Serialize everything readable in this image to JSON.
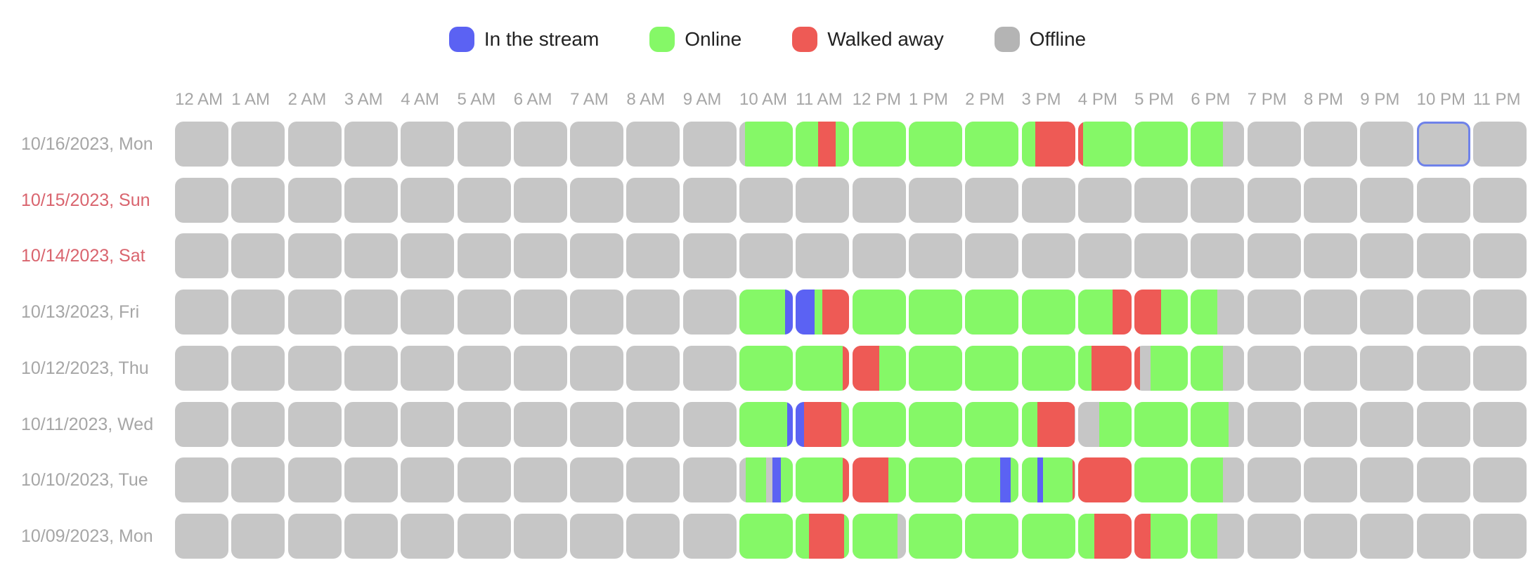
{
  "legend": {
    "items": [
      {
        "label": "In the stream",
        "color": "#5b62f3"
      },
      {
        "label": "Online",
        "color": "#85f867"
      },
      {
        "label": "Walked away",
        "color": "#ee5a55"
      },
      {
        "label": "Offline",
        "color": "#b4b4b4"
      }
    ]
  },
  "colors": {
    "stream": "#5b62f3",
    "online": "#85f867",
    "away": "#ee5a55",
    "offline": "#c6c6c6",
    "weekday_label": "#a6a6a6",
    "weekend_label": "#d9646e",
    "selection_border": "#6f82ea"
  },
  "chart_data": {
    "type": "heatmap",
    "hours": [
      "12 AM",
      "1 AM",
      "2 AM",
      "3 AM",
      "4 AM",
      "5 AM",
      "6 AM",
      "7 AM",
      "8 AM",
      "9 AM",
      "10 AM",
      "11 AM",
      "12 PM",
      "1 PM",
      "2 PM",
      "3 PM",
      "4 PM",
      "5 PM",
      "6 PM",
      "7 PM",
      "8 PM",
      "9 PM",
      "10 PM",
      "11 PM"
    ],
    "days": [
      {
        "label": "10/16/2023, Mon",
        "weekend": false,
        "selected_hour": 22,
        "segments": {
          "10": [
            [
              "offline",
              0,
              0.1
            ],
            [
              "online",
              0.1,
              1
            ]
          ],
          "11": [
            [
              "online",
              0,
              0.42
            ],
            [
              "away",
              0.42,
              0.75
            ],
            [
              "online",
              0.75,
              1
            ]
          ],
          "12": [
            [
              "online",
              0,
              1
            ]
          ],
          "13": [
            [
              "online",
              0,
              1
            ]
          ],
          "14": [
            [
              "online",
              0,
              1
            ]
          ],
          "15": [
            [
              "online",
              0,
              0.25
            ],
            [
              "away",
              0.25,
              1
            ]
          ],
          "16": [
            [
              "away",
              0,
              0.1
            ],
            [
              "online",
              0.1,
              1
            ]
          ],
          "17": [
            [
              "online",
              0,
              1
            ]
          ],
          "18": [
            [
              "online",
              0,
              0.6
            ],
            [
              "offline",
              0.6,
              1
            ]
          ]
        }
      },
      {
        "label": "10/15/2023, Sun",
        "weekend": true,
        "segments": {}
      },
      {
        "label": "10/14/2023, Sat",
        "weekend": true,
        "segments": {}
      },
      {
        "label": "10/13/2023, Fri",
        "weekend": false,
        "segments": {
          "10": [
            [
              "online",
              0,
              0.85
            ],
            [
              "stream",
              0.85,
              1
            ]
          ],
          "11": [
            [
              "stream",
              0,
              0.35
            ],
            [
              "online",
              0.35,
              0.5
            ],
            [
              "away",
              0.5,
              1
            ]
          ],
          "12": [
            [
              "online",
              0,
              1
            ]
          ],
          "13": [
            [
              "online",
              0,
              1
            ]
          ],
          "14": [
            [
              "online",
              0,
              1
            ]
          ],
          "15": [
            [
              "online",
              0,
              1
            ]
          ],
          "16": [
            [
              "online",
              0,
              0.65
            ],
            [
              "away",
              0.65,
              1
            ]
          ],
          "17": [
            [
              "away",
              0,
              0.5
            ],
            [
              "online",
              0.5,
              1
            ]
          ],
          "18": [
            [
              "online",
              0,
              0.5
            ],
            [
              "offline",
              0.5,
              1
            ]
          ]
        }
      },
      {
        "label": "10/12/2023, Thu",
        "weekend": false,
        "segments": {
          "10": [
            [
              "online",
              0,
              1
            ]
          ],
          "11": [
            [
              "online",
              0,
              0.88
            ],
            [
              "away",
              0.88,
              1
            ]
          ],
          "12": [
            [
              "away",
              0,
              0.5
            ],
            [
              "online",
              0.5,
              1
            ]
          ],
          "13": [
            [
              "online",
              0,
              1
            ]
          ],
          "14": [
            [
              "online",
              0,
              1
            ]
          ],
          "15": [
            [
              "online",
              0,
              1
            ]
          ],
          "16": [
            [
              "online",
              0,
              0.25
            ],
            [
              "away",
              0.25,
              1
            ]
          ],
          "17": [
            [
              "away",
              0,
              0.1
            ],
            [
              "offline",
              0.1,
              0.3
            ],
            [
              "online",
              0.3,
              1
            ]
          ],
          "18": [
            [
              "online",
              0,
              0.6
            ],
            [
              "offline",
              0.6,
              1
            ]
          ]
        }
      },
      {
        "label": "10/11/2023, Wed",
        "weekend": false,
        "segments": {
          "10": [
            [
              "online",
              0,
              0.9
            ],
            [
              "stream",
              0.9,
              1
            ]
          ],
          "11": [
            [
              "stream",
              0,
              0.15
            ],
            [
              "away",
              0.15,
              0.85
            ],
            [
              "online",
              0.85,
              1
            ]
          ],
          "12": [
            [
              "online",
              0,
              1
            ]
          ],
          "13": [
            [
              "online",
              0,
              1
            ]
          ],
          "14": [
            [
              "online",
              0,
              1
            ]
          ],
          "15": [
            [
              "online",
              0,
              0.3
            ],
            [
              "away",
              0.3,
              1
            ]
          ],
          "16": [
            [
              "offline",
              0,
              0.4
            ],
            [
              "online",
              0.4,
              1
            ]
          ],
          "17": [
            [
              "online",
              0,
              1
            ]
          ],
          "18": [
            [
              "online",
              0,
              0.7
            ],
            [
              "offline",
              0.7,
              1
            ]
          ]
        }
      },
      {
        "label": "10/10/2023, Tue",
        "weekend": false,
        "segments": {
          "10": [
            [
              "offline",
              0,
              0.12
            ],
            [
              "online",
              0.12,
              0.5
            ],
            [
              "offline",
              0.5,
              0.62
            ],
            [
              "stream",
              0.62,
              0.78
            ],
            [
              "online",
              0.78,
              1
            ]
          ],
          "11": [
            [
              "online",
              0,
              0.88
            ],
            [
              "away",
              0.88,
              1
            ]
          ],
          "12": [
            [
              "away",
              0,
              0.68
            ],
            [
              "online",
              0.68,
              1
            ]
          ],
          "13": [
            [
              "online",
              0,
              1
            ]
          ],
          "14": [
            [
              "online",
              0,
              0.65
            ],
            [
              "stream",
              0.65,
              0.85
            ],
            [
              "online",
              0.85,
              1
            ]
          ],
          "15": [
            [
              "online",
              0,
              0.3
            ],
            [
              "stream",
              0.3,
              0.4
            ],
            [
              "online",
              0.4,
              0.95
            ],
            [
              "away",
              0.95,
              1
            ]
          ],
          "16": [
            [
              "away",
              0,
              1
            ]
          ],
          "17": [
            [
              "online",
              0,
              1
            ]
          ],
          "18": [
            [
              "online",
              0,
              0.6
            ],
            [
              "offline",
              0.6,
              1
            ]
          ]
        }
      },
      {
        "label": "10/09/2023, Mon",
        "weekend": false,
        "segments": {
          "10": [
            [
              "online",
              0,
              1
            ]
          ],
          "11": [
            [
              "online",
              0,
              0.25
            ],
            [
              "away",
              0.25,
              0.9
            ],
            [
              "online",
              0.9,
              1
            ]
          ],
          "12": [
            [
              "online",
              0,
              0.85
            ],
            [
              "offline",
              0.85,
              1
            ]
          ],
          "13": [
            [
              "online",
              0,
              1
            ]
          ],
          "14": [
            [
              "online",
              0,
              1
            ]
          ],
          "15": [
            [
              "online",
              0,
              1
            ]
          ],
          "16": [
            [
              "online",
              0,
              0.3
            ],
            [
              "away",
              0.3,
              1
            ]
          ],
          "17": [
            [
              "away",
              0,
              0.3
            ],
            [
              "online",
              0.3,
              1
            ]
          ],
          "18": [
            [
              "online",
              0,
              0.5
            ],
            [
              "offline",
              0.5,
              1
            ]
          ]
        }
      }
    ]
  }
}
